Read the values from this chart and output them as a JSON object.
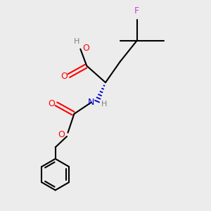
{
  "bg_color": "#ececec",
  "bond_color": "#000000",
  "O_color": "#ff0000",
  "N_color": "#0000cc",
  "F_color": "#cc44cc",
  "H_color": "#808080",
  "line_width": 1.5,
  "figsize": [
    3.0,
    3.0
  ],
  "dpi": 100,
  "xlim": [
    0,
    10
  ],
  "ylim": [
    0,
    10
  ]
}
